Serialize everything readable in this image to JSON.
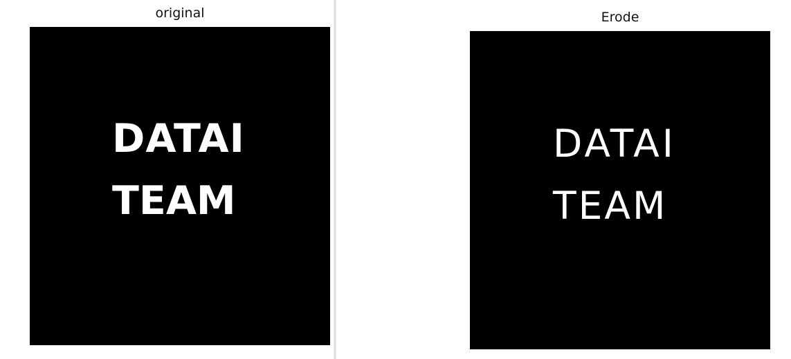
{
  "windows": [
    {
      "title": "original",
      "image_text": [
        "DATAI",
        "TEAM"
      ]
    },
    {
      "title": "Erode",
      "image_text": [
        "DATAI",
        "TEAM"
      ]
    }
  ]
}
